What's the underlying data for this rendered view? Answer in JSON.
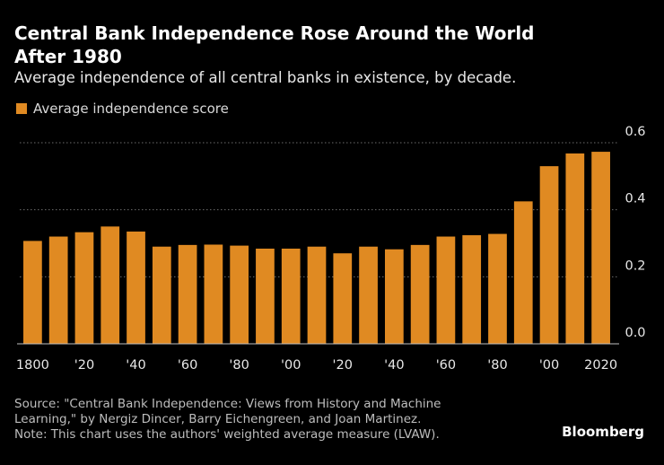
{
  "header": {
    "title": "Central Bank Independence Rose Around the World After 1980",
    "subtitle": "Average independence of all central banks in existence, by decade."
  },
  "colors": {
    "bar": "#e08a22",
    "grid": "#6b6b6b",
    "baseline": "#bfbfbf"
  },
  "chart_data": {
    "type": "bar",
    "title": "Central Bank Independence Rose Around the World After 1980",
    "subtitle": "Average independence of all central banks in existence, by decade.",
    "legend": [
      {
        "name": "Average independence score",
        "color": "#e08a22"
      }
    ],
    "legend_position": "top-left",
    "categories": [
      "1800",
      "1810",
      "1820",
      "1830",
      "1840",
      "1850",
      "1860",
      "1870",
      "1880",
      "1890",
      "1900",
      "1910",
      "1920",
      "1930",
      "1940",
      "1950",
      "1960",
      "1970",
      "1980",
      "1990",
      "2000",
      "2010",
      "2020"
    ],
    "x_tick_labels": [
      "1800",
      "",
      "'20",
      "",
      "'40",
      "",
      "'60",
      "",
      "'80",
      "",
      "'00",
      "",
      "'20",
      "",
      "'40",
      "",
      "'60",
      "",
      "'80",
      "",
      "'00",
      "",
      "2020"
    ],
    "series": [
      {
        "name": "Average independence score",
        "values": [
          0.307,
          0.32,
          0.333,
          0.35,
          0.335,
          0.29,
          0.295,
          0.296,
          0.293,
          0.284,
          0.284,
          0.29,
          0.27,
          0.29,
          0.282,
          0.295,
          0.32,
          0.324,
          0.328,
          0.425,
          0.53,
          0.568,
          0.573
        ]
      }
    ],
    "y_axis": {
      "min": 0,
      "max": 0.6,
      "ticks": [
        0.0,
        0.2,
        0.4,
        0.6
      ],
      "tick_labels": [
        "0.0",
        "0.2",
        "0.4",
        "0.6"
      ],
      "side": "right",
      "grid": true
    },
    "xlabel": "",
    "ylabel": ""
  },
  "footer": {
    "source_line1": "Source: \"Central Bank Independence: Views from History and Machine",
    "source_line2": "Learning,\" by Nergiz Dincer, Barry Eichengreen, and Joan Martinez.",
    "note": "Note: This chart uses the authors' weighted average measure (LVAW).",
    "brand": "Bloomberg"
  }
}
